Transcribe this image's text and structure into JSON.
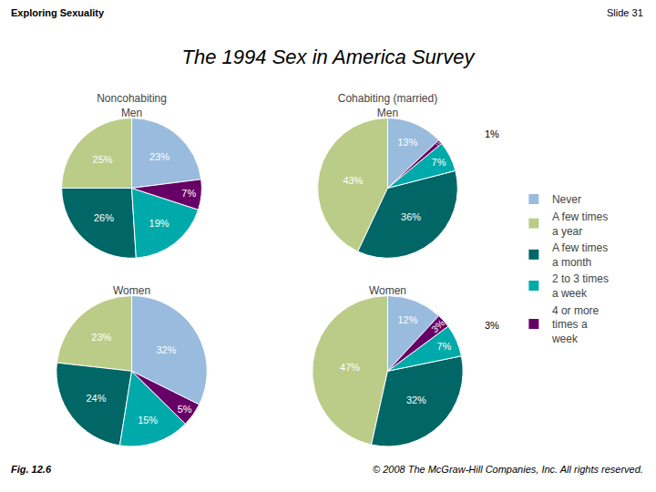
{
  "title": "The 1994 Sex in America Survey",
  "annotations": [
    "Exploring Sexuality",
    "Slide 31",
    "Fig. 12.6",
    "© 2008 The McGraw-Hill Companies, Inc. All rights reserved."
  ],
  "chart_data": [
    {
      "type": "pie",
      "title": "Noncohabiting\nMen",
      "categories": [
        "Never",
        "A few times\na year",
        "A few times\na month",
        "2 to 3 times\na week",
        "4 or more\ntimes a\nweek"
      ],
      "values": [
        23,
        25,
        26,
        19,
        7
      ],
      "value_labels": [
        "23%",
        "25%",
        "26%",
        "19%",
        "7%"
      ],
      "colors": [
        "#99BBDD",
        "#BBCC88",
        "#006666",
        "#00AAAA",
        "#660066"
      ],
      "data_labels": true,
      "legend": "right"
    },
    {
      "type": "pie",
      "title": "Cohabiting (married)\nMen",
      "categories": [
        "Never",
        "A few times\na year",
        "A few times\na month",
        "2 to 3 times\na week",
        "4 or more\ntimes a\nweek"
      ],
      "values": [
        13,
        43,
        36,
        7,
        1
      ],
      "value_labels": [
        "13%",
        "43%",
        "36%",
        "7%",
        "1%"
      ],
      "colors": [
        "#99BBDD",
        "#BBCC88",
        "#006666",
        "#00AAAA",
        "#660066"
      ],
      "annotations": [
        "1%"
      ],
      "data_labels": true,
      "legend": "right"
    },
    {
      "type": "pie",
      "title": "Women",
      "categories": [
        "Never",
        "A few times\na year",
        "A few times\na month",
        "2 to 3 times\na week",
        "4 or more\ntimes a\nweek"
      ],
      "values": [
        32,
        23,
        24,
        15,
        5
      ],
      "value_labels": [
        "32%",
        "23%",
        "24%",
        "15%",
        "5%"
      ],
      "colors": [
        "#99BBDD",
        "#BBCC88",
        "#006666",
        "#00AAAA",
        "#660066"
      ],
      "data_labels": true,
      "legend": "right"
    },
    {
      "type": "pie",
      "title": "Women",
      "categories": [
        "Never",
        "A few times\na year",
        "A few times\na month",
        "2 to 3 times\na week",
        "4 or more\ntimes a\nweek"
      ],
      "values": [
        12,
        47,
        32,
        7,
        3
      ],
      "value_labels": [
        "12%",
        "47%",
        "32%",
        "7%",
        "3%"
      ],
      "colors": [
        "#99BBDD",
        "#BBCC88",
        "#006666",
        "#00AAAA",
        "#660066"
      ],
      "annotations": [
        "3%"
      ],
      "data_labels": true,
      "legend": "right"
    }
  ]
}
